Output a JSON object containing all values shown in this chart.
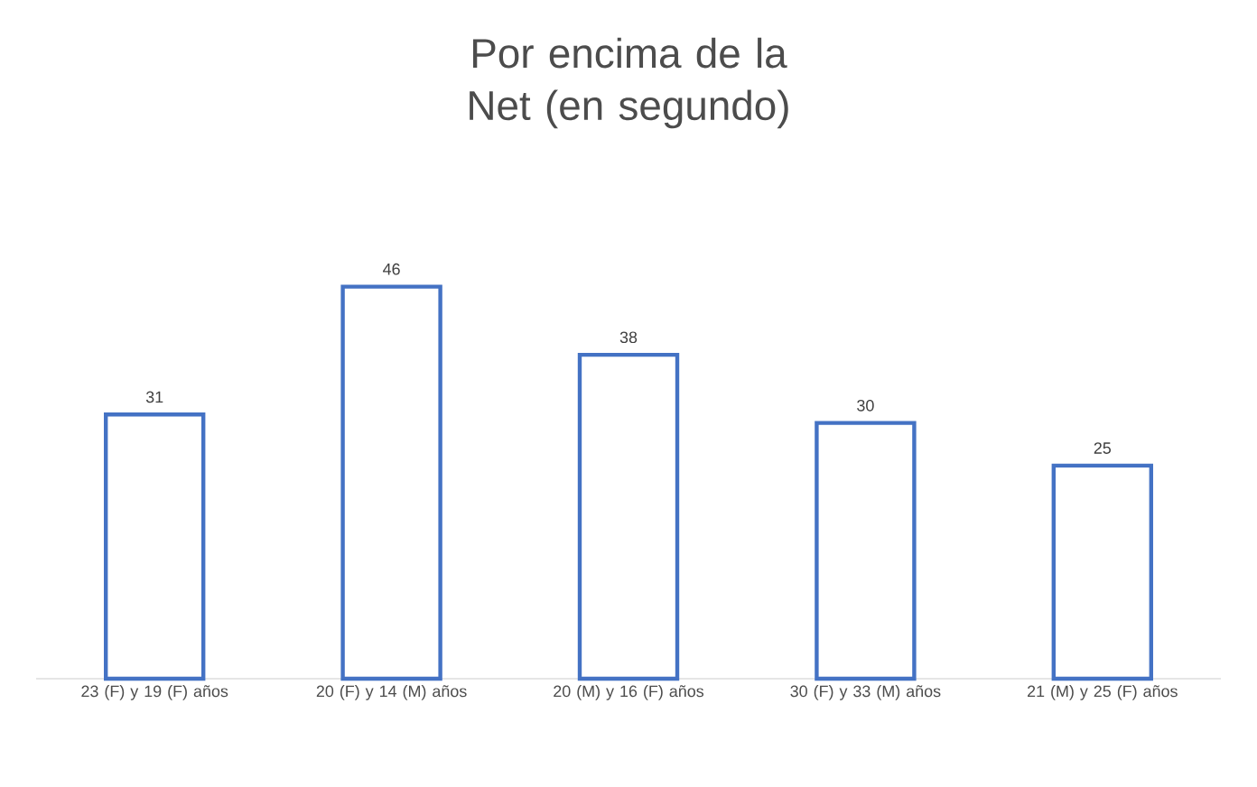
{
  "chart_data": {
    "type": "bar",
    "title": "Por encima de la Net (en segundo)",
    "categories": [
      "23 (F) y 19 (F) años",
      "20 (F) y 14 (M) años",
      "20 (M) y 16 (F) años",
      "30 (F) y 33 (M) años",
      "21 (M) y 25 (F) años"
    ],
    "values": [
      31,
      46,
      38,
      30,
      25
    ],
    "color": "#4472c4",
    "data_labels": true
  }
}
